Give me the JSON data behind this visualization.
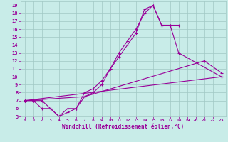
{
  "xlabel": "Windchill (Refroidissement éolien,°C)",
  "bg_color": "#c8ece8",
  "grid_color": "#a0c8c4",
  "line_color": "#990099",
  "xlim": [
    -0.5,
    23.5
  ],
  "ylim": [
    5,
    19.5
  ],
  "xticks": [
    0,
    1,
    2,
    3,
    4,
    5,
    6,
    7,
    8,
    9,
    10,
    11,
    12,
    13,
    14,
    15,
    16,
    17,
    18,
    19,
    20,
    21,
    22,
    23
  ],
  "yticks": [
    5,
    6,
    7,
    8,
    9,
    10,
    11,
    12,
    13,
    14,
    15,
    16,
    17,
    18,
    19
  ],
  "lines": [
    {
      "x": [
        0,
        1,
        2,
        3,
        4,
        5,
        6,
        7,
        8,
        9,
        10,
        11,
        12,
        13,
        14,
        15,
        16,
        17,
        18,
        23
      ],
      "y": [
        7,
        7,
        7,
        6,
        5,
        6,
        6,
        8,
        8.5,
        9.5,
        11,
        13,
        14.5,
        16,
        18,
        19,
        16.5,
        16.5,
        13,
        10
      ]
    },
    {
      "x": [
        0,
        1,
        2,
        3,
        4,
        5,
        6,
        7,
        8,
        9,
        10,
        11,
        12,
        13,
        14,
        15,
        16,
        17,
        18
      ],
      "y": [
        7,
        7,
        6,
        6,
        5,
        5.5,
        6,
        7.5,
        8,
        9,
        11,
        12.5,
        14,
        15.5,
        18.5,
        19,
        16.5,
        16.5,
        16.5
      ]
    },
    {
      "x": [
        0,
        23
      ],
      "y": [
        7,
        10
      ]
    },
    {
      "x": [
        0,
        7,
        21,
        23
      ],
      "y": [
        7,
        7.5,
        12,
        10.5
      ]
    }
  ]
}
